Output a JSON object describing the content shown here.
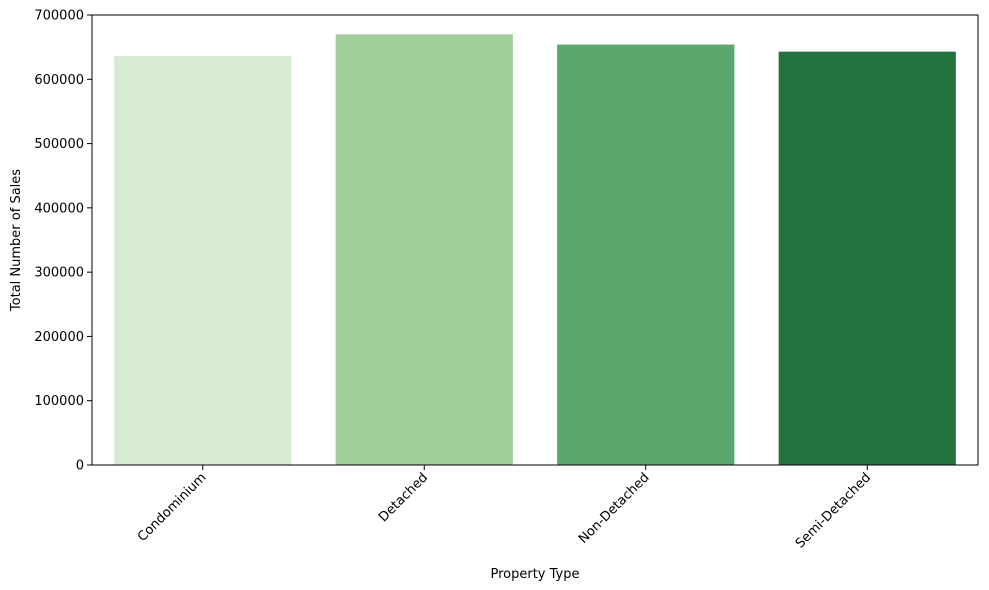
{
  "chart_data": {
    "type": "bar",
    "title": "",
    "xlabel": "Property Type",
    "ylabel": "Total Number of Sales",
    "categories": [
      "Condominium",
      "Detached",
      "Non-Detached",
      "Semi-Detached"
    ],
    "values": [
      636000,
      670000,
      654000,
      643000
    ],
    "colors": [
      "#d7ebd3",
      "#a1cd9b",
      "#5ba66c",
      "#23733f"
    ],
    "ylim": [
      0,
      700000
    ],
    "yticks": [
      "0",
      "100000",
      "200000",
      "300000",
      "400000",
      "500000",
      "600000",
      "700000"
    ],
    "grid": false,
    "legend": "none",
    "xtick_rotation": 45
  }
}
